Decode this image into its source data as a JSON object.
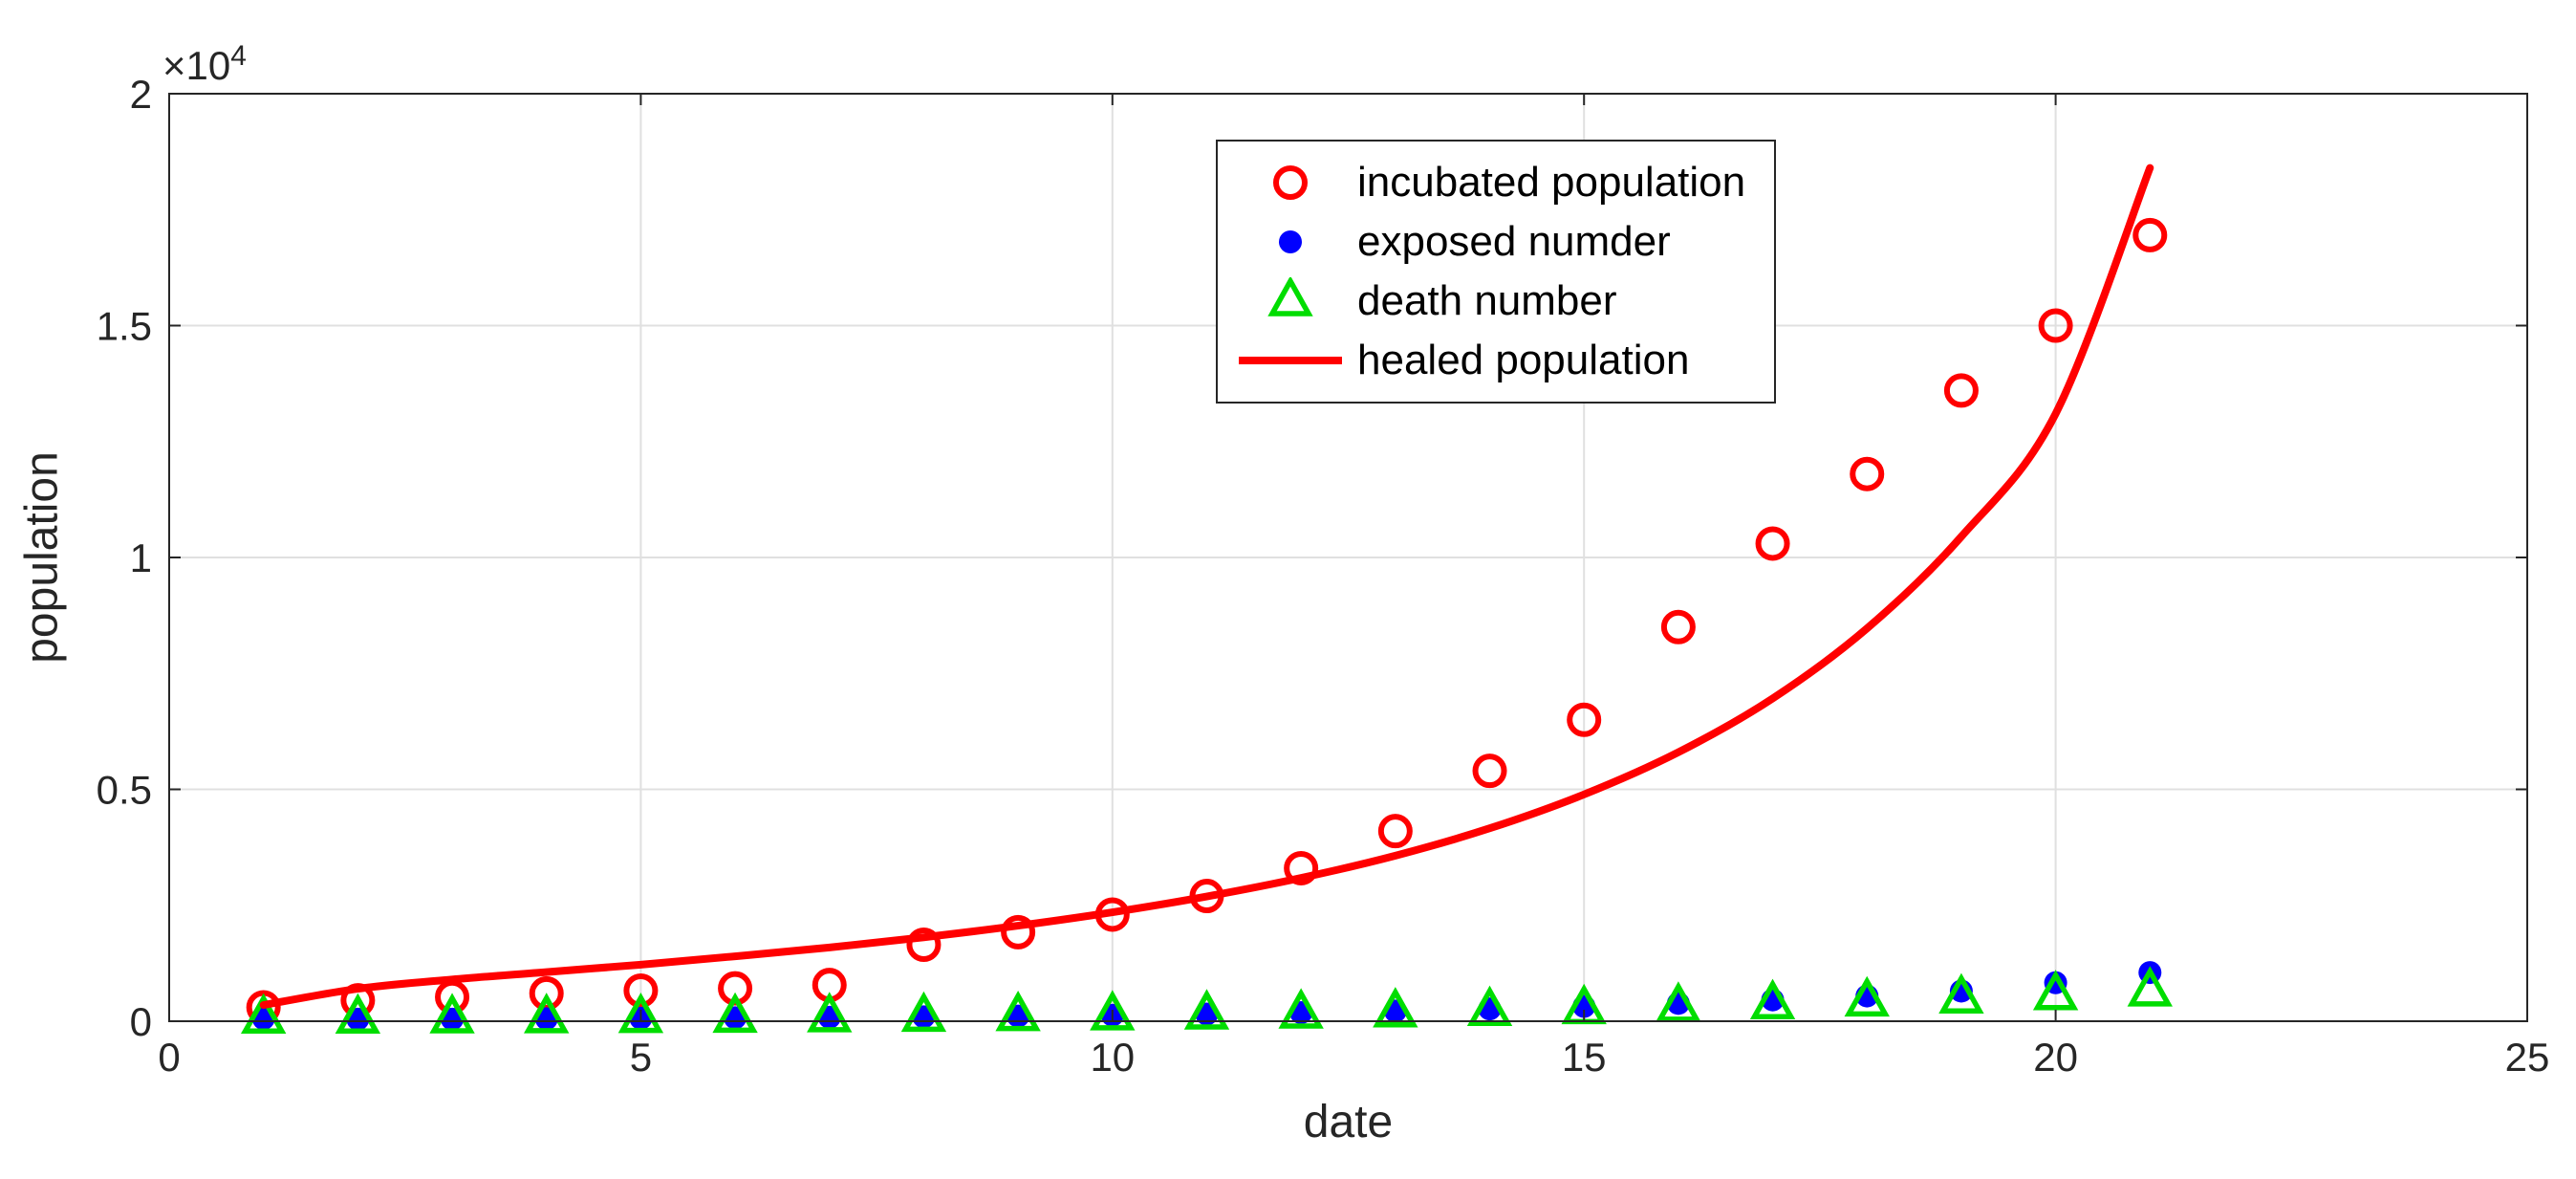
{
  "figure": {
    "background": "#ffffff",
    "axis_color": "#262626",
    "grid_color": "#e0e0e0",
    "tick_label_color": "#262626"
  },
  "chart_data": {
    "type": "scatter",
    "title": "",
    "xlabel": "date",
    "ylabel": "population",
    "y_exponent_base": "×10",
    "y_exponent_power": "4",
    "xlim": [
      0,
      25
    ],
    "ylim": [
      0,
      20000
    ],
    "grid": true,
    "legend_position": "upper-center-left",
    "xticks": {
      "values": [
        0,
        5,
        10,
        15,
        20,
        25
      ],
      "labels": [
        "0",
        "5",
        "10",
        "15",
        "20",
        "25"
      ]
    },
    "yticks": {
      "values": [
        0,
        5000,
        10000,
        15000,
        20000
      ],
      "labels": [
        "0",
        "0.5",
        "1",
        "1.5",
        "2"
      ]
    },
    "x": [
      1,
      2,
      3,
      4,
      5,
      6,
      7,
      8,
      9,
      10,
      11,
      12,
      13,
      14,
      15,
      16,
      17,
      18,
      19,
      20,
      21
    ],
    "series": [
      {
        "name": "incubated population",
        "type": "scatter",
        "marker": "circle-open",
        "color": "#ff0000",
        "values": [
          300,
          450,
          520,
          600,
          660,
          710,
          780,
          1650,
          1920,
          2300,
          2700,
          3300,
          4100,
          5400,
          6500,
          8500,
          10300,
          11800,
          13600,
          15000,
          16950
        ]
      },
      {
        "name": "exposed numder",
        "type": "scatter",
        "marker": "circle-filled",
        "color": "#0000ff",
        "values": [
          60,
          45,
          45,
          55,
          65,
          75,
          85,
          95,
          110,
          130,
          155,
          185,
          220,
          265,
          320,
          385,
          460,
          545,
          650,
          830,
          1050
        ]
      },
      {
        "name": "death number",
        "type": "scatter",
        "marker": "triangle-open",
        "color": "#00dd00",
        "values": [
          35,
          35,
          40,
          45,
          50,
          55,
          65,
          75,
          90,
          105,
          125,
          145,
          170,
          200,
          240,
          290,
          345,
          405,
          470,
          540,
          620
        ]
      },
      {
        "name": "healed population",
        "type": "line",
        "marker": "line",
        "color": "#ff0000",
        "values": [
          350,
          700,
          900,
          1060,
          1220,
          1400,
          1590,
          1810,
          2060,
          2350,
          2690,
          3090,
          3570,
          4160,
          4890,
          5800,
          6960,
          8470,
          10450,
          13100,
          18400
        ]
      }
    ]
  }
}
